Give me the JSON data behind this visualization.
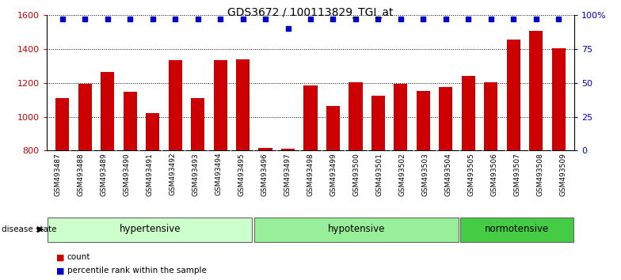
{
  "title": "GDS3672 / 100113829_TGI_at",
  "samples": [
    "GSM493487",
    "GSM493488",
    "GSM493489",
    "GSM493490",
    "GSM493491",
    "GSM493492",
    "GSM493493",
    "GSM493494",
    "GSM493495",
    "GSM493496",
    "GSM493497",
    "GSM493498",
    "GSM493499",
    "GSM493500",
    "GSM493501",
    "GSM493502",
    "GSM493503",
    "GSM493504",
    "GSM493505",
    "GSM493506",
    "GSM493507",
    "GSM493508",
    "GSM493509"
  ],
  "counts": [
    1110,
    1195,
    1265,
    1145,
    1020,
    1335,
    1110,
    1335,
    1340,
    815,
    810,
    1185,
    1065,
    1205,
    1125,
    1195,
    1150,
    1175,
    1240,
    1205,
    1455,
    1505,
    1405
  ],
  "percentile_ranks": [
    97,
    97,
    97,
    97,
    97,
    97,
    97,
    97,
    97,
    97,
    90,
    97,
    97,
    97,
    97,
    97,
    97,
    97,
    97,
    97,
    97,
    97,
    97
  ],
  "groups": [
    {
      "label": "hypertensive",
      "start": 0,
      "end": 9,
      "color": "#ccffcc"
    },
    {
      "label": "hypotensive",
      "start": 9,
      "end": 18,
      "color": "#99ee99"
    },
    {
      "label": "normotensive",
      "start": 18,
      "end": 23,
      "color": "#44cc44"
    }
  ],
  "ylim_left": [
    800,
    1600
  ],
  "ylim_right": [
    0,
    100
  ],
  "yticks_left": [
    800,
    1000,
    1200,
    1400,
    1600
  ],
  "yticks_right": [
    0,
    25,
    50,
    75,
    100
  ],
  "bar_color": "#cc0000",
  "dot_color": "#0000cc",
  "bar_width": 0.6,
  "tick_bg_color": "#c8c8c8",
  "legend_items": [
    {
      "label": "count",
      "color": "#cc0000"
    },
    {
      "label": "percentile rank within the sample",
      "color": "#0000cc"
    }
  ]
}
